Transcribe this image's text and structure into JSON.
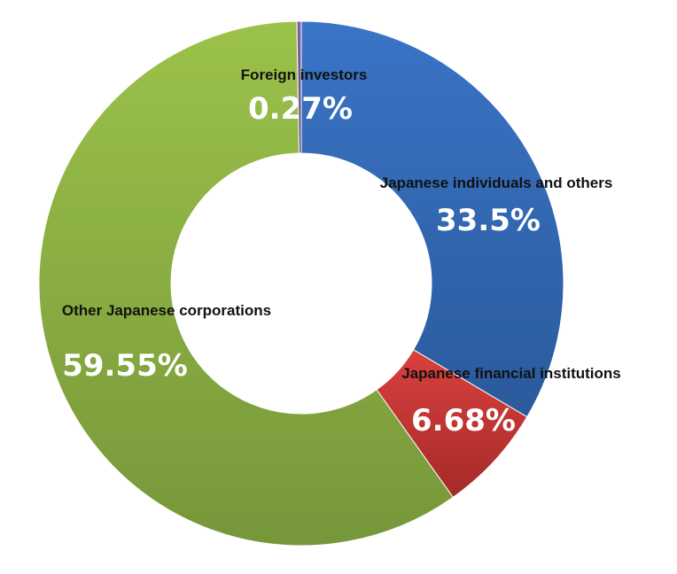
{
  "chart_data": {
    "type": "pie",
    "variant": "donut",
    "legend": "none",
    "slices": [
      {
        "label": "Japanese individuals and others",
        "value": 33.5,
        "display": "33.5%",
        "color": "#3a74c6",
        "color_dark": "#2b5a9c"
      },
      {
        "label": "Japanese financial institutions",
        "value": 6.68,
        "display": "6.68%",
        "color": "#d9413e",
        "color_dark": "#a52a28"
      },
      {
        "label": "Other Japanese corporations",
        "value": 59.55,
        "display": "59.55%",
        "color": "#9bc24a",
        "color_dark": "#76973a"
      },
      {
        "label": "Foreign investors",
        "value": 0.27,
        "display": "0.27%",
        "color": "#8064a2",
        "color_dark": "#60497a"
      }
    ]
  }
}
